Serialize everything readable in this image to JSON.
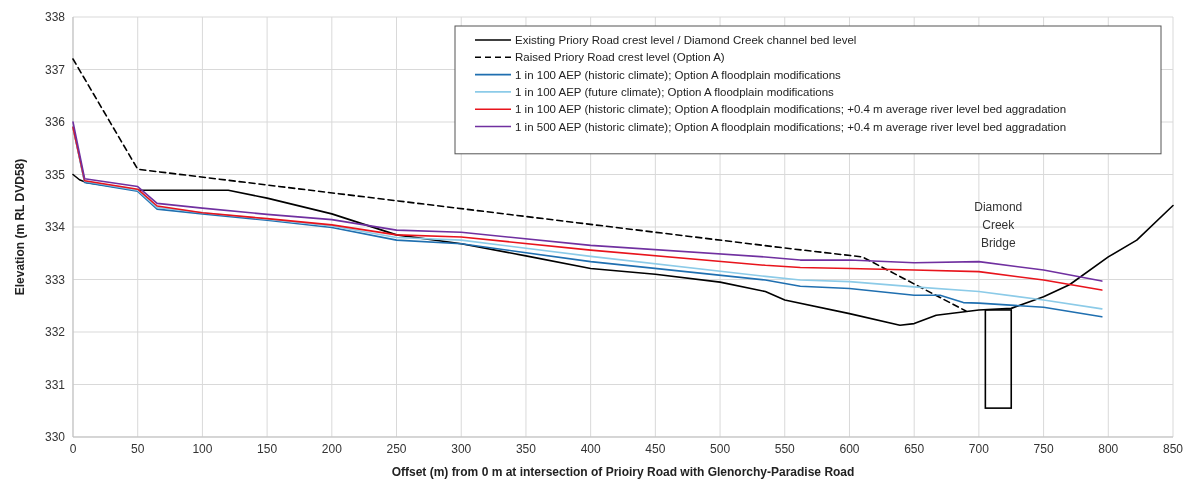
{
  "chart_data": {
    "type": "line",
    "xlabel": "Offset (m) from 0 m at intersection of Prioiry Road with Glenorchy-Paradise Road",
    "ylabel": "Elevation (m RL DVD58)",
    "xlim": [
      0,
      850
    ],
    "xticks": [
      0,
      50,
      100,
      150,
      200,
      250,
      300,
      350,
      400,
      450,
      500,
      550,
      600,
      650,
      700,
      750,
      800,
      850
    ],
    "ylim": [
      330,
      338
    ],
    "yticks": [
      330,
      331,
      332,
      333,
      334,
      335,
      336,
      337,
      338
    ],
    "grid": true,
    "legend": "top right",
    "marker": "none",
    "line_style": "solid",
    "annotations": [
      "Diamond Creek Bridge"
    ],
    "series": [
      {
        "name": "Existing Priory Road crest level / Diamond Creek channel bed level",
        "color": "#000000",
        "x": [
          0,
          5,
          10,
          50,
          60,
          100,
          120,
          150,
          200,
          225,
          250,
          300,
          350,
          400,
          450,
          500,
          535,
          550,
          600,
          639,
          650,
          667,
          700,
          725,
          750,
          770,
          800,
          822,
          850
        ],
        "values": [
          335.0,
          334.9,
          334.85,
          334.7,
          334.7,
          334.7,
          334.7,
          334.55,
          334.25,
          334.05,
          333.85,
          333.68,
          333.45,
          333.21,
          333.1,
          332.95,
          332.77,
          332.61,
          332.35,
          332.13,
          332.16,
          332.32,
          332.42,
          332.45,
          332.67,
          332.9,
          333.43,
          333.75,
          334.41
        ]
      },
      {
        "name": "Raised Priory Road crest level (Option A)",
        "color": "#000000",
        "line_style": "dashed",
        "x": [
          0,
          50,
          150,
          250,
          350,
          450,
          550,
          610,
          690
        ],
        "values": [
          337.2,
          335.1,
          334.8,
          334.5,
          334.2,
          333.9,
          333.6,
          333.43,
          332.4
        ]
      },
      {
        "name": "1 in 100 AEP (historic climate); Option A floodplain modifications",
        "color": "#1f6fb0",
        "x": [
          0,
          9,
          50,
          65,
          100,
          150,
          200,
          250,
          300,
          400,
          535,
          562,
          600,
          650,
          670,
          688,
          700,
          750,
          795
        ],
        "values": [
          335.9,
          334.85,
          334.68,
          334.34,
          334.25,
          334.13,
          333.99,
          333.75,
          333.68,
          333.34,
          332.99,
          332.87,
          332.83,
          332.7,
          332.7,
          332.56,
          332.55,
          332.47,
          332.29
        ]
      },
      {
        "name": "1 in 100 AEP (future climate); Option A floodplain modifications",
        "color": "#8ccbe8",
        "x": [
          0,
          9,
          50,
          65,
          100,
          150,
          200,
          250,
          300,
          400,
          535,
          562,
          600,
          650,
          700,
          750,
          795
        ],
        "values": [
          335.9,
          334.87,
          334.7,
          334.37,
          334.27,
          334.15,
          334.02,
          333.8,
          333.75,
          333.44,
          333.06,
          332.99,
          332.96,
          332.86,
          332.77,
          332.61,
          332.44
        ]
      },
      {
        "name": "1 in 100 AEP (historic climate); Option A floodplain modifications; +0.4 m average river level bed aggradation",
        "color": "#e8141c",
        "x": [
          0,
          9,
          50,
          65,
          100,
          150,
          200,
          250,
          300,
          400,
          535,
          562,
          600,
          650,
          700,
          750,
          795
        ],
        "values": [
          335.9,
          334.88,
          334.72,
          334.4,
          334.27,
          334.16,
          334.04,
          333.85,
          333.81,
          333.56,
          333.27,
          333.23,
          333.21,
          333.18,
          333.15,
          332.99,
          332.8
        ]
      },
      {
        "name": "1 in 500 AEP (historic climate); Option A floodplain modifications; +0.4 m average river level bed aggradation",
        "color": "#7030a0",
        "x": [
          0,
          9,
          50,
          65,
          100,
          150,
          200,
          250,
          300,
          400,
          535,
          562,
          600,
          650,
          700,
          750,
          795
        ],
        "values": [
          336.0,
          334.92,
          334.77,
          334.45,
          334.36,
          334.24,
          334.14,
          333.94,
          333.9,
          333.65,
          333.43,
          333.37,
          333.37,
          333.32,
          333.34,
          333.18,
          332.97
        ]
      }
    ]
  }
}
